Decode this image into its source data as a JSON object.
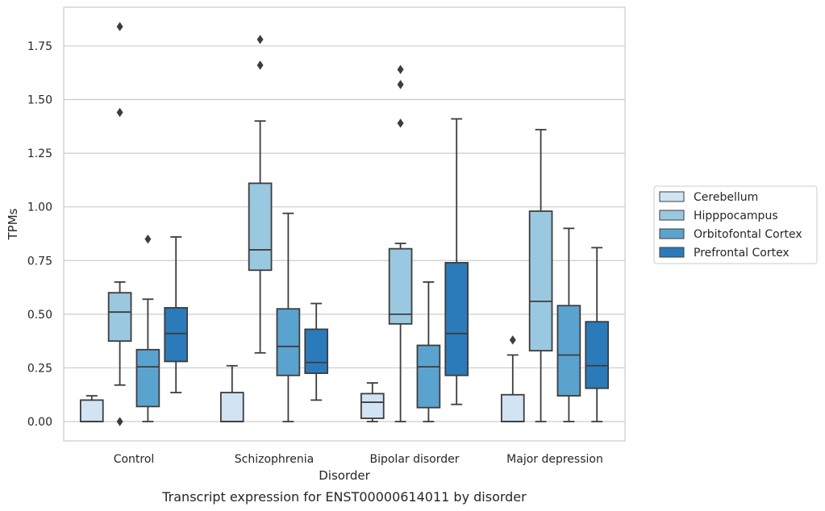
{
  "caption": "Transcript expression for ENST00000614011 by disorder",
  "chart_data": {
    "type": "boxplot",
    "xlabel": "Disorder",
    "ylabel": "TPMs",
    "ylim": [
      -0.09,
      1.93
    ],
    "yticks": [
      0.0,
      0.25,
      0.5,
      0.75,
      1.0,
      1.25,
      1.5,
      1.75
    ],
    "ytick_labels": [
      "0.00",
      "0.25",
      "0.50",
      "0.75",
      "1.00",
      "1.25",
      "1.50",
      "1.75"
    ],
    "grid": "horizontal",
    "legend_position": "right",
    "categories": [
      "Control",
      "Schizophrenia",
      "Bipolar disorder",
      "Major depression"
    ],
    "series": [
      {
        "name": "Cerebellum",
        "color": "#d2e3f3",
        "boxes": [
          {
            "whislo": 0.0,
            "q1": 0.0,
            "med": 0.0,
            "q3": 0.1,
            "whishi": 0.12,
            "fliers": []
          },
          {
            "whislo": 0.0,
            "q1": 0.0,
            "med": 0.0,
            "q3": 0.135,
            "whishi": 0.26,
            "fliers": []
          },
          {
            "whislo": 0.0,
            "q1": 0.015,
            "med": 0.09,
            "q3": 0.13,
            "whishi": 0.18,
            "fliers": []
          },
          {
            "whislo": 0.0,
            "q1": 0.0,
            "med": 0.0,
            "q3": 0.125,
            "whishi": 0.31,
            "fliers": [
              0.38
            ]
          }
        ]
      },
      {
        "name": "Hipppocampus",
        "color": "#9ac8e0",
        "boxes": [
          {
            "whislo": 0.17,
            "q1": 0.375,
            "med": 0.51,
            "q3": 0.6,
            "whishi": 0.65,
            "fliers": [
              1.84,
              1.44,
              0.0
            ]
          },
          {
            "whislo": 0.32,
            "q1": 0.705,
            "med": 0.8,
            "q3": 1.11,
            "whishi": 1.4,
            "fliers": [
              1.78,
              1.66
            ]
          },
          {
            "whislo": 0.0,
            "q1": 0.455,
            "med": 0.5,
            "q3": 0.805,
            "whishi": 0.83,
            "fliers": [
              1.64,
              1.57,
              1.39
            ]
          },
          {
            "whislo": 0.0,
            "q1": 0.33,
            "med": 0.56,
            "q3": 0.98,
            "whishi": 1.36,
            "fliers": []
          }
        ]
      },
      {
        "name": "Orbitofontal Cortex",
        "color": "#5ba3cf",
        "boxes": [
          {
            "whislo": 0.0,
            "q1": 0.07,
            "med": 0.255,
            "q3": 0.335,
            "whishi": 0.57,
            "fliers": [
              0.85
            ]
          },
          {
            "whislo": 0.0,
            "q1": 0.215,
            "med": 0.35,
            "q3": 0.525,
            "whishi": 0.97,
            "fliers": []
          },
          {
            "whislo": 0.0,
            "q1": 0.065,
            "med": 0.255,
            "q3": 0.355,
            "whishi": 0.65,
            "fliers": []
          },
          {
            "whislo": 0.0,
            "q1": 0.12,
            "med": 0.31,
            "q3": 0.54,
            "whishi": 0.9,
            "fliers": []
          }
        ]
      },
      {
        "name": "Prefrontal Cortex",
        "color": "#2b7bba",
        "boxes": [
          {
            "whislo": 0.135,
            "q1": 0.28,
            "med": 0.41,
            "q3": 0.53,
            "whishi": 0.86,
            "fliers": []
          },
          {
            "whislo": 0.1,
            "q1": 0.225,
            "med": 0.275,
            "q3": 0.43,
            "whishi": 0.55,
            "fliers": []
          },
          {
            "whislo": 0.08,
            "q1": 0.215,
            "med": 0.41,
            "q3": 0.74,
            "whishi": 1.41,
            "fliers": []
          },
          {
            "whislo": 0.0,
            "q1": 0.155,
            "med": 0.26,
            "q3": 0.465,
            "whishi": 0.81,
            "fliers": []
          }
        ]
      }
    ]
  }
}
